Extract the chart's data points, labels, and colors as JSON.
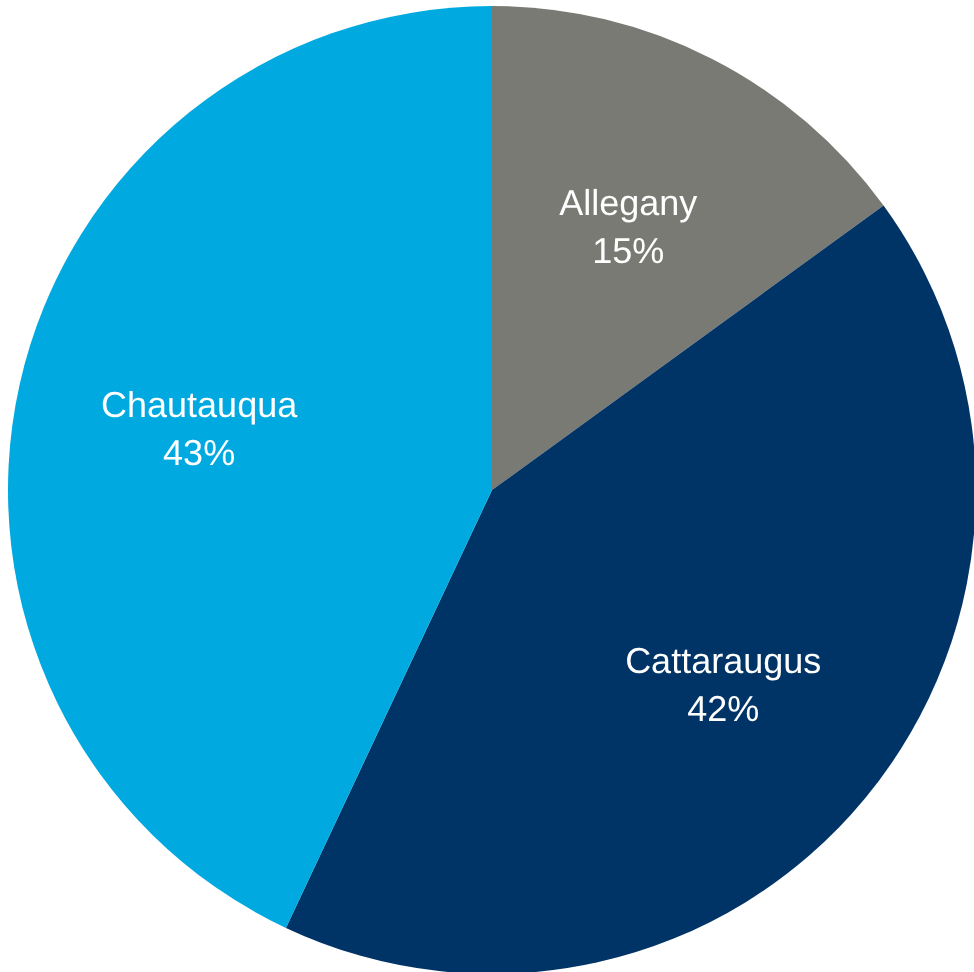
{
  "chart_data": {
    "type": "pie",
    "categories": [
      "Allegany",
      "Cattaraugus",
      "Chautauqua"
    ],
    "values": [
      15,
      42,
      43
    ],
    "value_labels": [
      "15%",
      "42%",
      "43%"
    ],
    "colors": [
      "#7a7a74",
      "#003366",
      "#00a9e0"
    ],
    "legend": false
  }
}
